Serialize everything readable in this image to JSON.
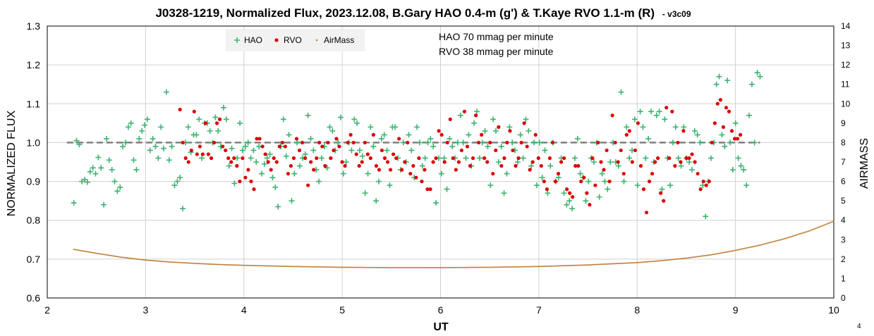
{
  "chart_data": {
    "type": "scatter",
    "title": "J0328-1219, Normalized Flux, 2023.12.08, B.Gary HAO 0.4-m (g') & T.Kaye RVO 1.1-m (R)",
    "title_suffix": "- v3c09",
    "xlabel": "UT",
    "ylabel": "NORMALIZED FLUX",
    "y2label": "AIRMASS",
    "xlim": [
      2,
      10
    ],
    "ylim": [
      0.6,
      1.3
    ],
    "y2lim": [
      0,
      14
    ],
    "xticks": [
      "2",
      "3",
      "4",
      "5",
      "6",
      "7",
      "8",
      "9",
      "10"
    ],
    "yticks": [
      "0.6",
      "0.7",
      "0.8",
      "0.9",
      "1.0",
      "1.1",
      "1.2",
      "1.3"
    ],
    "y2ticks": [
      "0",
      "1",
      "2",
      "3",
      "4",
      "5",
      "6",
      "7",
      "8",
      "9",
      "10",
      "11",
      "12",
      "13",
      "14"
    ],
    "grid": true,
    "legend_position": "top-left",
    "annotations": [
      "HAO 70 mmag per minute",
      "RVO 38 mmag per minute"
    ],
    "footnote": "4",
    "reference_line": {
      "y": 1.0,
      "x": [
        2.2,
        9.25
      ],
      "style": "dashed",
      "color": "#7f7f7f"
    },
    "series": [
      {
        "name": "HAO",
        "marker": "+",
        "color": "#3cb371",
        "x_range": [
          2.27,
          9.25
        ],
        "y": [
          0.845,
          1.005,
          0.995,
          0.9,
          0.905,
          0.898,
          0.925,
          0.935,
          0.92,
          0.962,
          0.935,
          0.84,
          1.01,
          0.955,
          0.93,
          0.9,
          0.875,
          0.885,
          0.99,
          1.0,
          1.04,
          1.05,
          0.955,
          0.93,
          1.01,
          1.03,
          1.045,
          1.06,
          0.98,
          1.01,
          0.99,
          0.96,
          1.04,
          0.985,
          1.13,
          0.955,
          0.99,
          0.89,
          0.9,
          0.91,
          0.83,
          1.0,
          1.04,
          0.975,
          1.02,
          1.02,
          1.06,
          0.96,
          1.05,
          1.05,
          1.03,
          1.0,
          1.065,
          1.03,
          0.99,
          1.09,
          1.06,
          0.94,
          0.985,
          0.895,
          0.96,
          1.05,
          0.98,
          0.99,
          1.0,
          0.96,
          0.98,
          0.95,
          0.99,
          0.92,
          0.945,
          0.96,
          0.97,
          0.91,
          0.885,
          0.835,
          0.99,
          1.06,
          0.965,
          1.02,
          0.85,
          0.92,
          1.0,
          0.94,
          0.96,
          0.97,
          1.07,
          1.01,
          0.98,
          0.93,
          0.9,
          0.96,
          0.99,
          0.935,
          1.04,
          1.03,
          0.98,
          1.0,
          1.065,
          0.92,
          0.95,
          1.0,
          0.98,
          1.06,
          1.05,
          0.98,
          0.965,
          0.87,
          0.92,
          1.04,
          0.99,
          0.85,
          0.9,
          1.01,
          1.02,
          0.98,
          0.89,
          1.04,
          1.04,
          0.96,
          0.93,
          1.0,
          0.95,
          1.02,
          0.98,
          0.91,
          1.04,
          1.0,
          0.94,
          0.96,
          1.0,
          1.01,
          0.99,
          0.845,
          0.96,
          0.92,
          0.96,
          0.88,
          1.01,
          0.99,
          0.96,
          1.0,
          1.07,
          1.0,
          0.96,
          1.02,
          0.94,
          1.05,
          1.08,
          0.96,
          1.0,
          1.03,
          0.99,
          0.89,
          1.06,
          1.03,
          0.95,
          0.99,
          0.87,
          0.92,
          1.04,
          1.0,
          0.98,
          0.95,
          1.02,
          0.96,
          1.06,
          1.03,
          0.94,
          1.0,
          0.89,
          1.0,
          0.91,
          0.98,
          0.87,
          0.94,
          1.0,
          0.9,
          0.91,
          0.96,
          0.87,
          0.84,
          0.85,
          0.83,
          0.96,
          1.01,
          0.92,
          0.91,
          0.85,
          0.9,
          0.96,
          0.95,
          1.0,
          0.86,
          0.92,
          0.9,
          0.88,
          0.95,
          1.0,
          0.95,
          0.94,
          1.13,
          0.9,
          1.04,
          0.96,
          0.98,
          1.06,
          0.89,
          1.08,
          1.04,
          0.96,
          1.01,
          1.08,
          0.95,
          1.07,
          1.08,
          0.88,
          1.06,
          0.96,
          0.89,
          1.0,
          1.04,
          0.96,
          0.94,
          1.04,
          0.96,
          0.95,
          0.93,
          1.03,
          1.02,
          1.0,
          0.89,
          0.81,
          0.9,
          0.96,
          1.0,
          1.15,
          1.17,
          1.02,
          0.99,
          1.16,
          1.0,
          0.93,
          1.05,
          0.96,
          0.94,
          0.93,
          0.89,
          1.07,
          1.15,
          1.0,
          1.18,
          1.17
        ]
      },
      {
        "name": "RVO",
        "marker": "dot",
        "color": "#dd0000",
        "x_range": [
          3.35,
          9.05
        ],
        "y": [
          1.085,
          1.0,
          0.96,
          0.95,
          0.98,
          1.08,
          0.97,
          0.99,
          0.97,
          1.05,
          0.97,
          0.96,
          1.0,
          1.05,
          1.06,
          0.99,
          0.98,
          0.96,
          0.95,
          0.96,
          0.94,
          0.9,
          0.96,
          0.91,
          0.93,
          0.9,
          0.88,
          1.01,
          1.01,
          0.99,
          0.97,
          0.95,
          0.93,
          0.96,
          0.95,
          0.99,
          1.0,
          0.99,
          0.92,
          0.94,
          0.96,
          1.01,
          0.98,
          1.0,
          0.96,
          0.89,
          0.95,
          0.93,
          0.96,
          1.0,
          0.99,
          0.94,
          1.0,
          0.96,
          0.98,
          1.01,
          0.99,
          0.95,
          0.94,
          1.0,
          1.02,
          1.0,
          0.97,
          0.94,
          0.95,
          1.0,
          0.97,
          0.96,
          1.02,
          0.94,
          0.93,
          0.98,
          0.96,
          0.95,
          0.93,
          0.97,
          0.96,
          1.01,
          0.93,
          0.95,
          1.0,
          0.92,
          0.94,
          0.91,
          0.96,
          0.9,
          0.93,
          0.88,
          0.88,
          0.95,
          0.96,
          1.03,
          1.02,
          0.95,
          1.0,
          1.06,
          0.96,
          0.93,
          0.95,
          0.98,
          1.08,
          0.99,
          0.94,
          0.96,
          1.07,
          1.0,
          1.02,
          0.96,
          0.95,
          1.0,
          0.92,
          0.98,
          1.04,
          0.94,
          0.96,
          1.0,
          1.03,
          0.98,
          0.94,
          0.96,
          1.0,
          1.05,
          0.99,
          0.93,
          0.95,
          1.02,
          0.96,
          0.94,
          0.9,
          0.88,
          0.96,
          1.0,
          0.9,
          0.92,
          0.95,
          0.96,
          0.88,
          0.87,
          0.86,
          0.94,
          0.94,
          0.9,
          0.91,
          0.87,
          0.84,
          0.96,
          0.89,
          1.0,
          0.95,
          0.93,
          0.98,
          0.9,
          1.07,
          1.0,
          0.95,
          0.98,
          0.92,
          1.02,
          1.03,
          0.95,
          0.98,
          1.05,
          0.94,
          0.88,
          0.82,
          0.9,
          0.92,
          0.95,
          0.96,
          0.87,
          0.85,
          1.09,
          0.96,
          1.08,
          0.94,
          1.0,
          0.95,
          1.03,
          0.96,
          0.96,
          0.97,
          0.95,
          0.92,
          0.88,
          0.9,
          0.89,
          0.9,
          1.0,
          1.05,
          1.1,
          1.11,
          1.04,
          1.09,
          1.08,
          1.03,
          1.01,
          1.01,
          1.02
        ]
      },
      {
        "name": "AirMass",
        "marker": "small-dot",
        "color": "#c0803a",
        "axis": "right",
        "x": [
          2.27,
          2.5,
          2.75,
          3.0,
          3.25,
          3.5,
          3.75,
          4.0,
          4.5,
          5.0,
          5.5,
          6.0,
          6.5,
          7.0,
          7.5,
          8.0,
          8.25,
          8.5,
          8.75,
          9.0,
          9.25,
          9.5,
          9.75,
          10.0
        ],
        "y": [
          2.5,
          2.3,
          2.1,
          1.95,
          1.85,
          1.78,
          1.72,
          1.68,
          1.62,
          1.58,
          1.56,
          1.56,
          1.58,
          1.62,
          1.7,
          1.82,
          1.92,
          2.05,
          2.22,
          2.45,
          2.72,
          3.05,
          3.45,
          3.95
        ]
      }
    ]
  }
}
